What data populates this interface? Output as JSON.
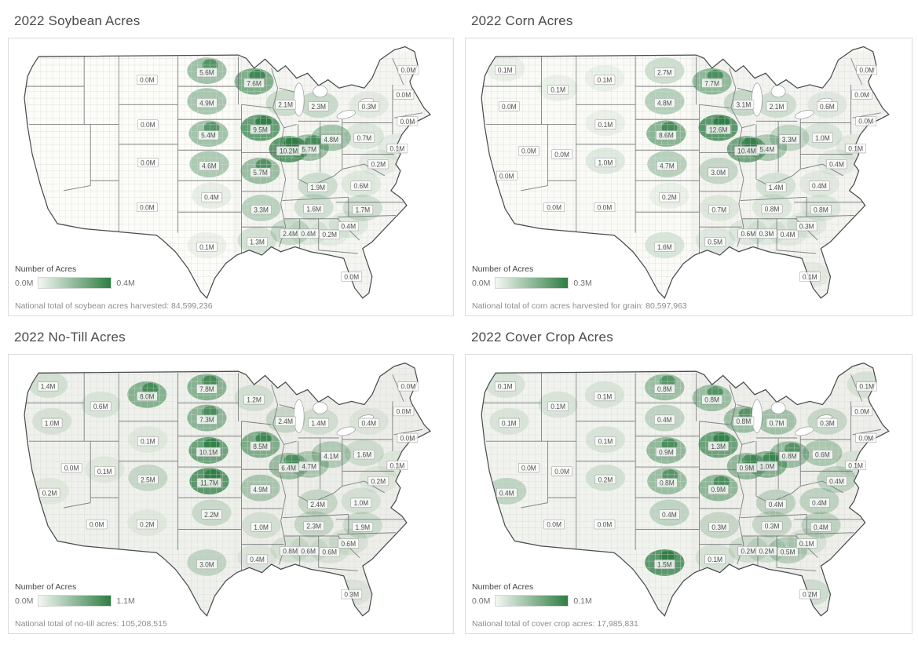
{
  "colors": {
    "accent_green": "#2e7d44",
    "map_outline": "#454b4c",
    "state_border": "#6b7172",
    "county_grid": "#d7d7d2",
    "title_text": "#4a4a4a",
    "legend_label_text": "#707070",
    "caption_text": "#8d8d8d",
    "value_label_text": "#4f4f4f",
    "panel_border": "#dcdcdc"
  },
  "value_suffix": "M",
  "panels": [
    {
      "title": "2022 Soybean Acres",
      "legend_title": "Number of Acres",
      "legend_min": "0.0M",
      "legend_max": "0.4M",
      "caption": "National total of soybean acres harvested: 84,599,236"
    },
    {
      "title": "2022 Corn Acres",
      "legend_title": "Number of Acres",
      "legend_min": "0.0M",
      "legend_max": "0.3M",
      "caption": "National total of corn acres harvested for grain: 80,597,963"
    },
    {
      "title": "2022 No-Till Acres",
      "legend_title": "Number of Acres",
      "legend_min": "0.0M",
      "legend_max": "1.1M",
      "caption": "National total of no-till acres: 105,208,515"
    },
    {
      "title": "2022 Cover Crop Acres",
      "legend_title": "Number of Acres",
      "legend_min": "0.0M",
      "legend_max": "0.1M",
      "caption": "National total of cover crop acres: 17,985,831"
    }
  ],
  "chart_data": [
    {
      "type": "heatmap",
      "subtype": "us-county-choropleth",
      "title": "2022 Soybean Acres",
      "unit": "million acres (state label totals)",
      "legend": {
        "label": "Number of Acres",
        "min": "0.0M",
        "max": "0.4M"
      },
      "national_total": 84599236,
      "states": {
        "MT": 0.0,
        "WY": 0.0,
        "CO": 0.0,
        "NM": 0.0,
        "ND": 5.6,
        "SD": 4.9,
        "NE": 5.4,
        "KS": 4.6,
        "OK": 0.4,
        "TX": 0.1,
        "MN": 7.6,
        "IA": 9.5,
        "MO": 5.7,
        "AR": 3.3,
        "LA": 1.3,
        "WI": 2.1,
        "IL": 10.2,
        "MS": 2.4,
        "MI": 2.3,
        "IN": 5.7,
        "KY": 1.9,
        "TN": 1.6,
        "AL": 0.4,
        "OH": 4.8,
        "GA": 0.2,
        "FL": 0.0,
        "SC": 0.4,
        "NC": 1.7,
        "VA": 0.6,
        "MD": 0.2,
        "PA": 0.7,
        "NJ": 0.1,
        "NY": 0.3,
        "MA": 0.0,
        "NH": 0.0,
        "ME": 0.0
      }
    },
    {
      "type": "heatmap",
      "subtype": "us-county-choropleth",
      "title": "2022 Corn Acres",
      "unit": "million acres (state label totals)",
      "legend": {
        "label": "Number of Acres",
        "min": "0.0M",
        "max": "0.3M"
      },
      "national_total": 80597963,
      "states": {
        "WA": 0.1,
        "OR": 0.0,
        "CA": 0.0,
        "NV": 0.0,
        "ID": 0.1,
        "UT": 0.0,
        "AZ": 0.0,
        "MT": 0.1,
        "WY": 0.1,
        "CO": 1.0,
        "NM": 0.0,
        "ND": 2.7,
        "SD": 4.8,
        "NE": 8.6,
        "KS": 4.7,
        "OK": 0.2,
        "TX": 1.6,
        "MN": 7.7,
        "IA": 12.6,
        "MO": 3.0,
        "AR": 0.7,
        "LA": 0.5,
        "WI": 3.1,
        "IL": 10.4,
        "MS": 0.6,
        "MI": 2.1,
        "IN": 5.4,
        "KY": 1.4,
        "TN": 0.8,
        "AL": 0.3,
        "OH": 3.3,
        "GA": 0.4,
        "FL": 0.1,
        "SC": 0.3,
        "NC": 0.8,
        "VA": 0.4,
        "MD": 0.4,
        "PA": 1.0,
        "NJ": 0.1,
        "NY": 0.6,
        "MA": 0.0,
        "NH": 0.0,
        "ME": 0.0
      }
    },
    {
      "type": "heatmap",
      "subtype": "us-county-choropleth",
      "title": "2022 No-Till Acres",
      "unit": "million acres (state label totals)",
      "legend": {
        "label": "Number of Acres",
        "min": "0.0M",
        "max": "1.1M"
      },
      "national_total": 105208515,
      "states": {
        "WA": 1.4,
        "OR": 1.0,
        "CA": 0.2,
        "NV": 0.0,
        "ID": 0.6,
        "UT": 0.1,
        "AZ": 0.0,
        "MT": 8.0,
        "WY": 0.1,
        "CO": 2.5,
        "NM": 0.2,
        "ND": 7.8,
        "SD": 7.3,
        "NE": 10.1,
        "KS": 11.7,
        "OK": 2.2,
        "TX": 3.0,
        "MN": 1.2,
        "IA": 8.5,
        "MO": 4.9,
        "AR": 1.0,
        "LA": 0.4,
        "WI": 2.4,
        "IL": 6.4,
        "MS": 0.8,
        "MI": 1.4,
        "IN": 4.7,
        "KY": 2.4,
        "TN": 2.3,
        "AL": 0.6,
        "OH": 4.1,
        "GA": 0.6,
        "FL": 0.3,
        "SC": 0.6,
        "NC": 1.9,
        "VA": 1.0,
        "MD": 0.2,
        "PA": 1.6,
        "NJ": 0.1,
        "NY": 0.4,
        "MA": 0.0,
        "NH": 0.0,
        "ME": 0.0
      }
    },
    {
      "type": "heatmap",
      "subtype": "us-county-choropleth",
      "title": "2022 Cover Crop Acres",
      "unit": "million acres (state label totals)",
      "legend": {
        "label": "Number of Acres",
        "min": "0.0M",
        "max": "0.1M"
      },
      "national_total": 17985831,
      "states": {
        "WA": 0.1,
        "OR": 0.1,
        "CA": 0.4,
        "NV": 0.0,
        "ID": 0.1,
        "UT": 0.0,
        "AZ": 0.0,
        "MT": 0.1,
        "WY": 0.1,
        "CO": 0.2,
        "NM": 0.0,
        "ND": 0.8,
        "SD": 0.4,
        "NE": 0.9,
        "KS": 0.8,
        "OK": 0.4,
        "TX": 1.5,
        "MN": 0.8,
        "IA": 1.3,
        "MO": 0.9,
        "AR": 0.3,
        "LA": 0.1,
        "WI": 0.8,
        "IL": 0.9,
        "MS": 0.2,
        "MI": 0.7,
        "IN": 1.0,
        "KY": 0.4,
        "TN": 0.3,
        "AL": 0.2,
        "OH": 0.8,
        "GA": 0.5,
        "FL": 0.2,
        "SC": 0.1,
        "NC": 0.4,
        "VA": 0.4,
        "MD": 0.4,
        "PA": 0.6,
        "NJ": 0.1,
        "NY": 0.3,
        "MA": 0.0,
        "NH": 0.0,
        "ME": 0.1
      }
    }
  ]
}
